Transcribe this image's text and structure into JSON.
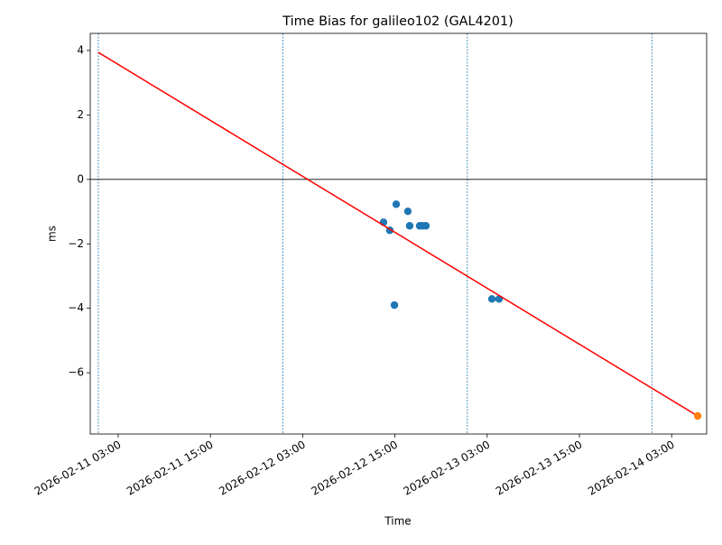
{
  "chart_data": {
    "type": "scatter",
    "title": "Time Bias for galileo102 (GAL4201)",
    "xlabel": "Time",
    "ylabel": "ms",
    "xlim": [
      "2026-02-10 23:22",
      "2026-02-14 07:33"
    ],
    "xticks": [
      "2026-02-11 03:00",
      "2026-02-11 15:00",
      "2026-02-12 03:00",
      "2026-02-12 15:00",
      "2026-02-13 03:00",
      "2026-02-13 15:00",
      "2026-02-14 03:00"
    ],
    "ylim": [
      -7.9,
      4.53
    ],
    "yticks": [
      {
        "value": -6,
        "label": "−6"
      },
      {
        "value": -4,
        "label": "−4"
      },
      {
        "value": -2,
        "label": "−2"
      },
      0,
      2,
      4
    ],
    "hline": 0,
    "vlines": [
      "2026-02-11 00:25",
      "2026-02-12 00:25",
      "2026-02-13 00:25",
      "2026-02-14 00:25"
    ],
    "series": [
      {
        "type": "scatter",
        "color": "#1f77b4",
        "x": [
          "2026-02-12 13:31",
          "2026-02-12 14:20",
          "2026-02-12 14:56",
          "2026-02-12 15:10",
          "2026-02-12 16:41",
          "2026-02-12 16:55",
          "2026-02-12 18:13",
          "2026-02-12 18:34",
          "2026-02-12 19:02",
          "2026-02-13 03:37",
          "2026-02-13 04:33"
        ],
        "values": [
          -1.33,
          -1.58,
          -3.9,
          -0.77,
          -0.99,
          -1.44,
          -1.44,
          -1.44,
          -1.44,
          -3.71,
          -3.71
        ]
      },
      {
        "type": "line",
        "color": "#ff0000",
        "x": [
          "2026-02-11 00:25",
          "2026-02-14 06:23"
        ],
        "values": [
          3.94,
          -7.34
        ]
      },
      {
        "type": "scatter",
        "color": "#ff7f0e",
        "x": [
          "2026-02-14 06:23"
        ],
        "values": [
          -7.34
        ]
      }
    ]
  }
}
